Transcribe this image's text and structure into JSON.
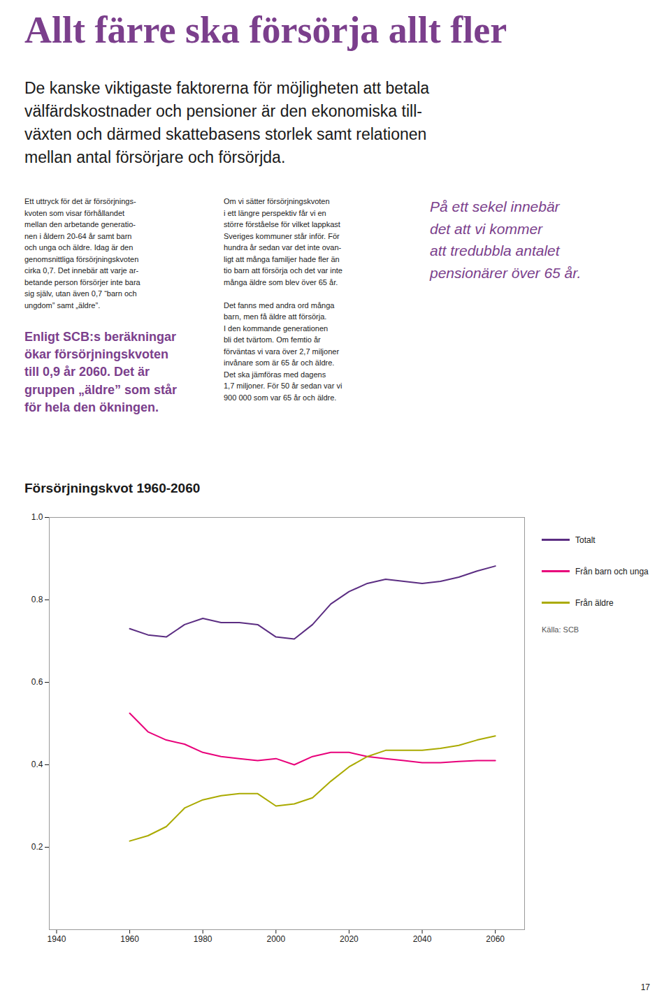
{
  "title": "Allt färre ska försörja allt fler",
  "subtitle": [
    "De kanske viktigaste faktorerna för möjligheten att betala",
    "välfärdskostnader och pensioner är den ekonomiska till-",
    "växten och därmed skattebasens storlek samt relationen",
    "mellan antal försörjare och försörjda."
  ],
  "annotations": [
    "Ett uttryck för det är försörjnings-\nkvoten som visar förhållandet\nmellan den arbetande generatio-\nnen i åldern 20-64 år samt barn\noch unga och äldre. Idag är den\ngenomsnittliga försörjningskvoten\ncirka 0,7. Det innebär att varje ar-\nbetande person försörjer inte bara\nsig själv, utan även 0,7 “barn och\nungdom” samt „äldre”.",
    "Enligt SCB:s beräkningar\nökar försörjningskvoten\ntill 0,9 år 2060. Det är\ngruppen „äldre” som står\nför hela den ökningen.",
    "Om vi sätter försörjningskvoten\ni ett längre perspektiv får vi en\nstörre förståelse för vilket lappkast\nSveriges kommuner står inför. För\nhundra år sedan var det inte ovan-\nligt att många familjer hade fler än\ntio barn att försörja och det var inte\nmånga äldre som blev över 65 år.\n\nDet fanns med andra ord många\nbarn, men få äldre att försörja.\nI den kommande generationen\nbli det tvärtom. Om femtio år\nförväntas vi vara över 2,7 miljoner\ninvånare som är 65 år och äldre.\nDet ska jämföras med dagens\n1,7 miljoner. För 50 år sedan var vi\n900 000 som var 65 år och äldre.",
    "På ett sekel innebär\ndet att vi kommer\natt tredubbla antalet\npensionärer över 65 år.",
    "17"
  ],
  "chart_data": {
    "type": "line",
    "title": "Försörjningskvot 1960-2060",
    "x": [
      1960,
      1965,
      1970,
      1975,
      1980,
      1985,
      1990,
      1995,
      2000,
      2005,
      2010,
      2015,
      2020,
      2025,
      2030,
      2035,
      2040,
      2045,
      2050,
      2055,
      2060
    ],
    "series": [
      {
        "name": "Totalt",
        "color": "#5B2D82",
        "values": [
          0.73,
          0.715,
          0.71,
          0.74,
          0.755,
          0.745,
          0.745,
          0.74,
          0.71,
          0.705,
          0.74,
          0.79,
          0.82,
          0.84,
          0.85,
          0.845,
          0.84,
          0.845,
          0.855,
          0.87,
          0.882
        ]
      },
      {
        "name": "Från barn och unga",
        "color": "#E8007A",
        "values": [
          0.525,
          0.48,
          0.46,
          0.45,
          0.43,
          0.42,
          0.415,
          0.41,
          0.415,
          0.4,
          0.42,
          0.43,
          0.43,
          0.42,
          0.415,
          0.41,
          0.405,
          0.405,
          0.408,
          0.41,
          0.41
        ]
      },
      {
        "name": "Från äldre",
        "color": "#AAAA00",
        "values": [
          0.215,
          0.228,
          0.25,
          0.295,
          0.315,
          0.325,
          0.33,
          0.33,
          0.3,
          0.305,
          0.32,
          0.36,
          0.395,
          0.42,
          0.435,
          0.435,
          0.435,
          0.44,
          0.447,
          0.46,
          0.47
        ]
      }
    ],
    "xlim": [
      1938,
      2068
    ],
    "xticks": [
      1940,
      1960,
      1980,
      2000,
      2020,
      2040,
      2060
    ],
    "ylim": [
      0.0,
      1.0
    ],
    "yticks": [
      0.2,
      0.4,
      0.6,
      0.8,
      {
        "value": 1.0,
        "label": "1.0"
      }
    ],
    "grid": false,
    "legend": "right",
    "annotations": [
      "Källa: SCB"
    ]
  }
}
